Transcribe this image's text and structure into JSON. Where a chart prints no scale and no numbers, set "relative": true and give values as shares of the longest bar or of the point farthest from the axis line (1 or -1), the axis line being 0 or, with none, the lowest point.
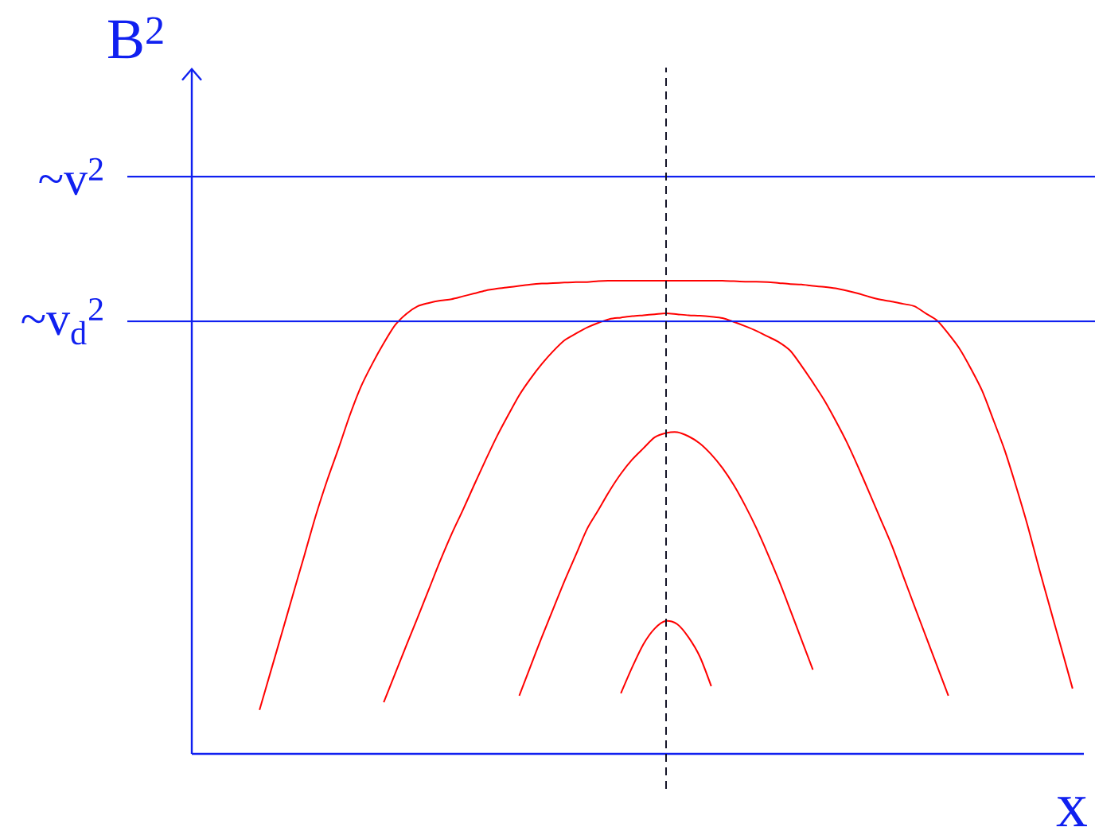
{
  "chart_data": {
    "type": "line",
    "relative": true,
    "xlabel": "x",
    "ylabel": "B$^{2}$",
    "categories": [
      null,
      null,
      null,
      null,
      null,
      null,
      null,
      null,
      null,
      null,
      null,
      null,
      null,
      null,
      null,
      null,
      null,
      null,
      null,
      null,
      null,
      null,
      null,
      null,
      null,
      null,
      null,
      null,
      null,
      null,
      null,
      null,
      null,
      null,
      null,
      null,
      null,
      null,
      null,
      null,
      null,
      null,
      null,
      null,
      null,
      null,
      null,
      null,
      null,
      null,
      null,
      null,
      null,
      null,
      null,
      null,
      null,
      null,
      null,
      null,
      null,
      null,
      null,
      null,
      null,
      null,
      null,
      null,
      null,
      null,
      null,
      null,
      null,
      null,
      null,
      null,
      null,
      null,
      null,
      null
    ],
    "series": [
      {
        "color": "#ff0000",
        "values": [
          null,
          null,
          null,
          null,
          null,
          null,
          0.093,
          0.175,
          0.257,
          0.34,
          0.422,
          0.505,
          0.579,
          0.646,
          0.716,
          0.777,
          0.825,
          0.868,
          0.906,
          0.93,
          0.946,
          0.953,
          0.958,
          0.961,
          0.967,
          0.973,
          0.979,
          0.983,
          0.986,
          0.989,
          0.992,
          0.994,
          0.995,
          0.996,
          0.997,
          0.997,
          0.999,
          1.0,
          1.0,
          1.0,
          1.0,
          1.0,
          1.0,
          1.0,
          1.0,
          1.0,
          1.0,
          1.0,
          0.999,
          0.998,
          0.998,
          0.997,
          0.995,
          0.993,
          0.992,
          0.989,
          0.987,
          0.984,
          0.979,
          0.973,
          0.966,
          0.96,
          0.956,
          0.951,
          0.946,
          0.931,
          0.916,
          0.888,
          0.856,
          0.814,
          0.767,
          0.705,
          0.641,
          0.565,
          0.484,
          0.395,
          0.309,
          0.224,
          0.138,
          null
        ]
      },
      {
        "color": "#ff0000",
        "values": [
          null,
          null,
          null,
          null,
          null,
          null,
          null,
          null,
          null,
          null,
          null,
          null,
          null,
          null,
          null,
          null,
          null,
          0.109,
          0.169,
          0.229,
          0.288,
          0.348,
          0.408,
          0.464,
          0.515,
          0.568,
          0.62,
          0.67,
          0.715,
          0.758,
          0.793,
          0.824,
          0.851,
          0.874,
          0.888,
          0.901,
          0.911,
          0.919,
          0.922,
          0.925,
          0.927,
          0.929,
          0.931,
          0.929,
          0.927,
          0.926,
          0.924,
          0.921,
          0.913,
          0.904,
          0.894,
          0.882,
          0.87,
          0.852,
          0.82,
          0.785,
          0.748,
          0.705,
          0.659,
          0.607,
          0.552,
          0.496,
          0.44,
          0.376,
          0.312,
          0.249,
          0.186,
          0.123,
          null,
          null,
          null,
          null,
          null,
          null,
          null,
          null,
          null,
          null,
          null,
          null
        ]
      },
      {
        "color": "#ff0000",
        "values": [
          null,
          null,
          null,
          null,
          null,
          null,
          null,
          null,
          null,
          null,
          null,
          null,
          null,
          null,
          null,
          null,
          null,
          null,
          null,
          null,
          null,
          null,
          null,
          null,
          null,
          null,
          null,
          null,
          null,
          0.123,
          0.185,
          0.247,
          0.306,
          0.365,
          0.42,
          0.475,
          0.515,
          0.556,
          0.592,
          0.622,
          0.646,
          0.669,
          0.678,
          0.68,
          0.671,
          0.656,
          0.633,
          0.604,
          0.568,
          0.525,
          0.477,
          0.423,
          0.366,
          0.304,
          0.241,
          0.178,
          null,
          null,
          null,
          null,
          null,
          null,
          null,
          null,
          null,
          null,
          null,
          null,
          null,
          null,
          null,
          null,
          null,
          null,
          null,
          null,
          null,
          null,
          null,
          null
        ]
      },
      {
        "color": "#ff0000",
        "values": [
          null,
          null,
          null,
          null,
          null,
          null,
          null,
          null,
          null,
          null,
          null,
          null,
          null,
          null,
          null,
          null,
          null,
          null,
          null,
          null,
          null,
          null,
          null,
          null,
          null,
          null,
          null,
          null,
          null,
          null,
          null,
          null,
          null,
          null,
          null,
          null,
          null,
          null,
          0.128,
          0.183,
          0.232,
          0.265,
          0.281,
          0.274,
          0.246,
          0.205,
          0.143,
          null,
          null,
          null,
          null,
          null,
          null,
          null,
          null,
          null,
          null,
          null,
          null,
          null,
          null,
          null,
          null,
          null,
          null,
          null,
          null,
          null,
          null,
          null,
          null,
          null,
          null,
          null,
          null,
          null,
          null,
          null,
          null,
          null
        ]
      }
    ],
    "ref_lines": [
      {
        "axis": "y",
        "value": 1.22,
        "label": "~v$^{2}$",
        "color": "#1020f0"
      },
      {
        "axis": "y",
        "value": 0.914,
        "label": "~v$_{d}$$^{2}$",
        "color": "#1020f0"
      }
    ]
  }
}
